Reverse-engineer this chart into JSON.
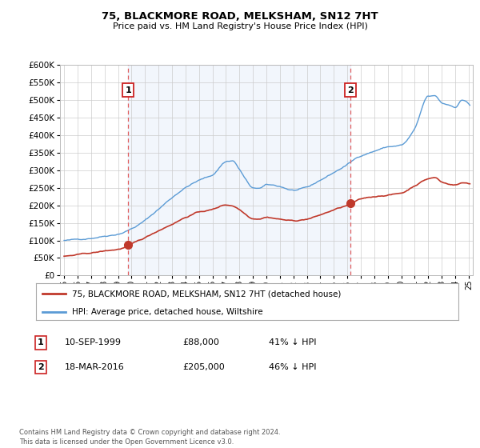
{
  "title": "75, BLACKMORE ROAD, MELKSHAM, SN12 7HT",
  "subtitle": "Price paid vs. HM Land Registry's House Price Index (HPI)",
  "legend_line1": "75, BLACKMORE ROAD, MELKSHAM, SN12 7HT (detached house)",
  "legend_line2": "HPI: Average price, detached house, Wiltshire",
  "transaction1_date": "10-SEP-1999",
  "transaction1_price": 88000,
  "transaction1_label": "41% ↓ HPI",
  "transaction1_year": 1999.75,
  "transaction2_date": "18-MAR-2016",
  "transaction2_price": 205000,
  "transaction2_label": "46% ↓ HPI",
  "transaction2_year": 2016.21,
  "footer": "Contains HM Land Registry data © Crown copyright and database right 2024.\nThis data is licensed under the Open Government Licence v3.0.",
  "hpi_color": "#5b9bd5",
  "price_color": "#c0392b",
  "vline_color": "#e06060",
  "fill_color": "#ddeeff",
  "background_color": "#ffffff",
  "grid_color": "#cccccc",
  "ylim": [
    0,
    600000
  ],
  "yticks": [
    0,
    50000,
    100000,
    150000,
    200000,
    250000,
    300000,
    350000,
    400000,
    450000,
    500000,
    550000,
    600000
  ]
}
